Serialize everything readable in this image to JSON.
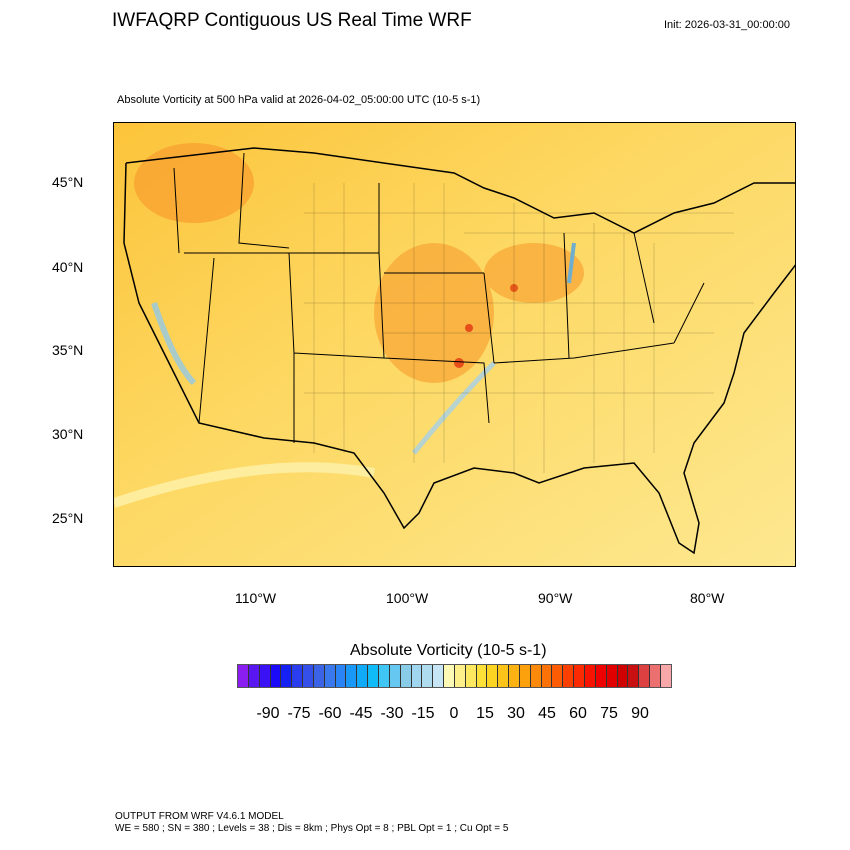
{
  "header": {
    "title": "IWFAQRP Contiguous US Real Time WRF",
    "init": "Init: 2026-03-31_00:00:00",
    "subtitle": "Absolute Vorticity at 500 hPa valid at 2026-04-02_05:00:00 UTC   (10-5 s-1)"
  },
  "map": {
    "lat_labels": [
      "45°N",
      "40°N",
      "35°N",
      "30°N",
      "25°N"
    ],
    "lon_labels": [
      "110°W",
      "100°W",
      "90°W",
      "80°W"
    ],
    "background_color": "#fde27a",
    "line_color": "#000000"
  },
  "colorbar": {
    "title": "Absolute Vorticity  (10-5 s-1)",
    "labels": [
      "-90",
      "-75",
      "-60",
      "-45",
      "-30",
      "-15",
      "0",
      "15",
      "30",
      "45",
      "60",
      "75",
      "90"
    ],
    "colors": [
      "#8a1ef0",
      "#5a16f0",
      "#3a12f5",
      "#1a0af8",
      "#1520f5",
      "#2a3ef0",
      "#3550e8",
      "#3a64e5",
      "#3a78ee",
      "#2a84f5",
      "#1a98f8",
      "#10aaf8",
      "#10bcf8",
      "#40c6f5",
      "#66c8f0",
      "#88cce8",
      "#a0d6f0",
      "#b0dcf0",
      "#c6e6f6",
      "#fdfab6",
      "#fdf08a",
      "#fde860",
      "#fde038",
      "#fed422",
      "#fcc418",
      "#fcb212",
      "#fca00c",
      "#fc8a0a",
      "#fc7206",
      "#fc5c04",
      "#fc4002",
      "#fc2a02",
      "#f81200",
      "#ee0000",
      "#e00000",
      "#d00000",
      "#c81010",
      "#dc4040",
      "#ec7070",
      "#f8a8a8"
    ]
  },
  "footer": {
    "line1": "OUTPUT FROM WRF V4.6.1 MODEL",
    "line2": "WE = 580 ; SN = 380 ; Levels = 38 ; Dis = 8km ; Phys Opt = 8 ; PBL Opt = 1 ; Cu Opt = 5"
  }
}
